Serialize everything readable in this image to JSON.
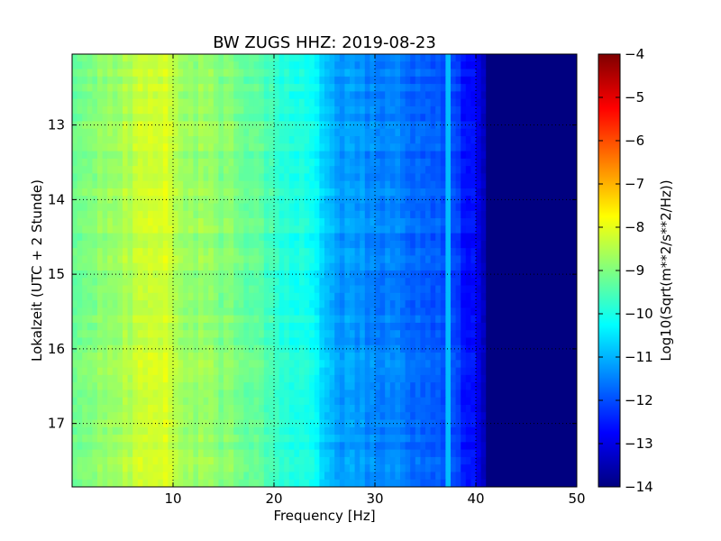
{
  "chart_data": {
    "type": "heatmap",
    "title": "BW ZUGS HHZ: 2019-08-23",
    "xlabel": "Frequency [Hz]",
    "ylabel": "Lokalzeit (UTC + 2 Stunde)",
    "xlim": [
      0,
      50
    ],
    "ylim": [
      17.85,
      12.05
    ],
    "x_ticks": [
      10,
      20,
      30,
      40,
      50
    ],
    "y_ticks": [
      13,
      14,
      15,
      16,
      17
    ],
    "grid": true,
    "colormap": "jet",
    "colorbar": {
      "label": "Log10(Sqrt(m**2/s**2/Hz))",
      "range": [
        -14,
        -4
      ],
      "ticks": [
        -4,
        -5,
        -6,
        -7,
        -8,
        -9,
        -10,
        -11,
        -12,
        -13,
        -14
      ]
    },
    "frequency_profile": {
      "x": [
        0,
        3,
        6,
        8,
        9,
        11,
        14,
        17,
        19.5,
        21,
        22.5,
        24,
        25,
        27,
        30,
        33,
        35,
        36.5,
        38,
        39.5,
        40.5,
        41.5,
        43,
        50
      ],
      "level": [
        -9.3,
        -8.9,
        -8.4,
        -8.2,
        -8.1,
        -8.7,
        -8.9,
        -9.1,
        -9.5,
        -9.8,
        -10.0,
        -10.3,
        -10.8,
        -11.2,
        -11.4,
        -11.6,
        -11.8,
        -12.0,
        -12.2,
        -12.6,
        -13.0,
        -13.8,
        -14.0,
        -14.0
      ]
    }
  }
}
